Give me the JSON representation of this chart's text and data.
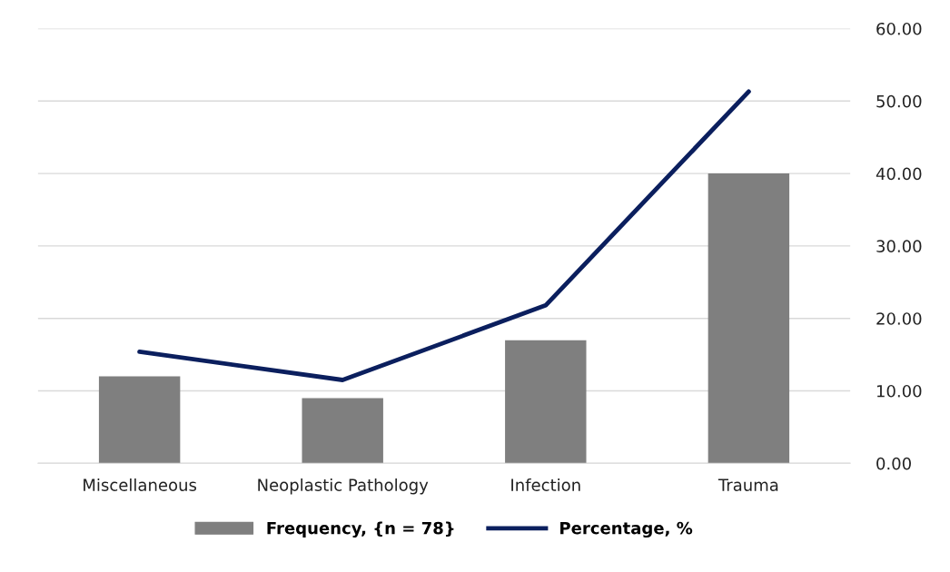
{
  "chart_data": {
    "type": "bar",
    "categories": [
      "Miscellaneous",
      "Neoplastic Pathology",
      "Infection",
      "Trauma"
    ],
    "series": [
      {
        "name": "Frequency, {n = 78}",
        "color": "#7f7f7f",
        "values": [
          12,
          9,
          17,
          40
        ]
      },
      {
        "name": "Percentage, %",
        "type": "line",
        "color": "#0b1f5e",
        "values": [
          15.4,
          11.5,
          21.8,
          51.3
        ]
      }
    ],
    "ylim": [
      0,
      60
    ],
    "yticks": [
      {
        "value": 0,
        "label": "0.00"
      },
      {
        "value": 10,
        "label": "10.00"
      },
      {
        "value": 20,
        "label": "20.00"
      },
      {
        "value": 30,
        "label": "30.00"
      },
      {
        "value": 40,
        "label": "40.00"
      },
      {
        "value": 50,
        "label": "50.00"
      },
      {
        "value": 60,
        "label": "60.00"
      }
    ],
    "grid": "y",
    "legend": "bottom",
    "marker": "none",
    "line_style": "solid"
  }
}
